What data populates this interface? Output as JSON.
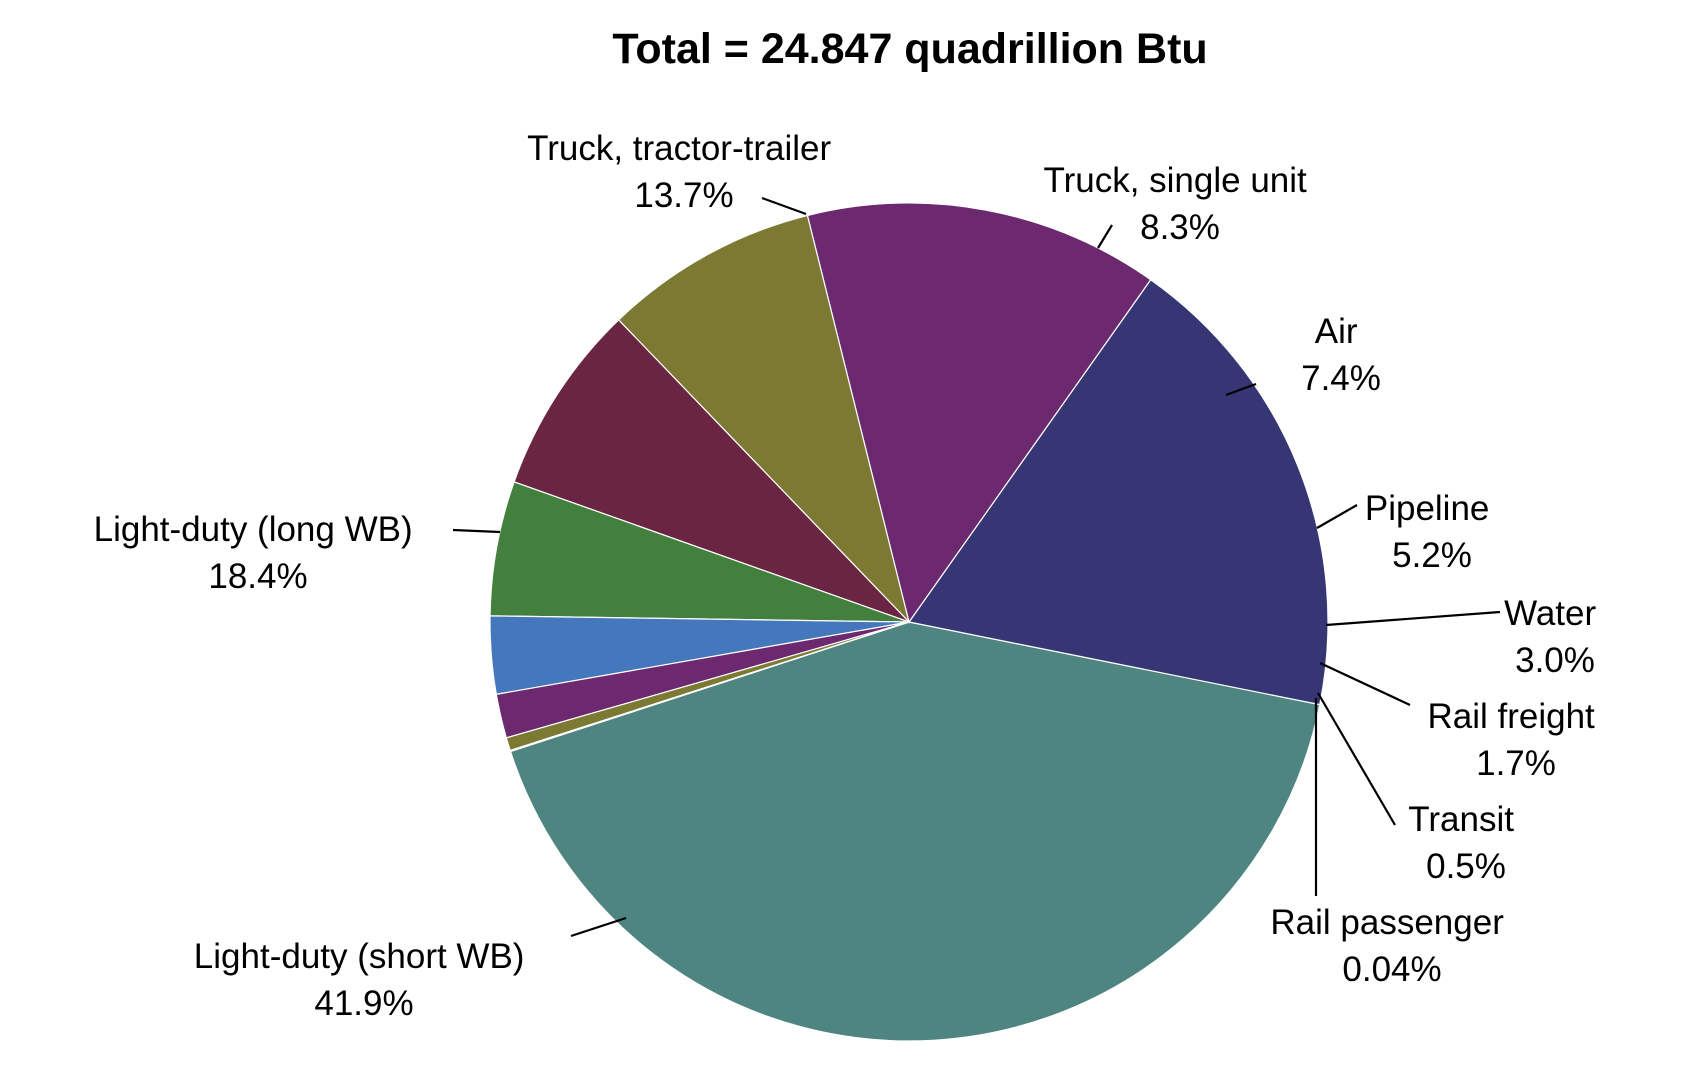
{
  "chart_data": {
    "type": "pie",
    "title": "Total = 24.847 quadrillion Btu",
    "categories": [
      "Light-duty (short WB)",
      "Light-duty (long WB)",
      "Truck, tractor-trailer",
      "Truck, single unit",
      "Air",
      "Pipeline",
      "Water",
      "Rail freight",
      "Transit",
      "Rail passenger"
    ],
    "values": [
      41.9,
      18.4,
      13.7,
      8.3,
      7.4,
      5.2,
      3.0,
      1.7,
      0.5,
      0.04
    ],
    "value_labels": [
      "41.9%",
      "18.4%",
      "13.7%",
      "8.3%",
      "7.4%",
      "5.2%",
      "3.0%",
      "1.7%",
      "0.5%",
      "0.04%"
    ],
    "colors": [
      "#4e8580",
      "#363674",
      "#6c2970",
      "#7c7a32",
      "#6a2543",
      "#43803d",
      "#4577bd",
      "#6c2970",
      "#7c7a32",
      "#6a2543"
    ],
    "legend": "none"
  }
}
